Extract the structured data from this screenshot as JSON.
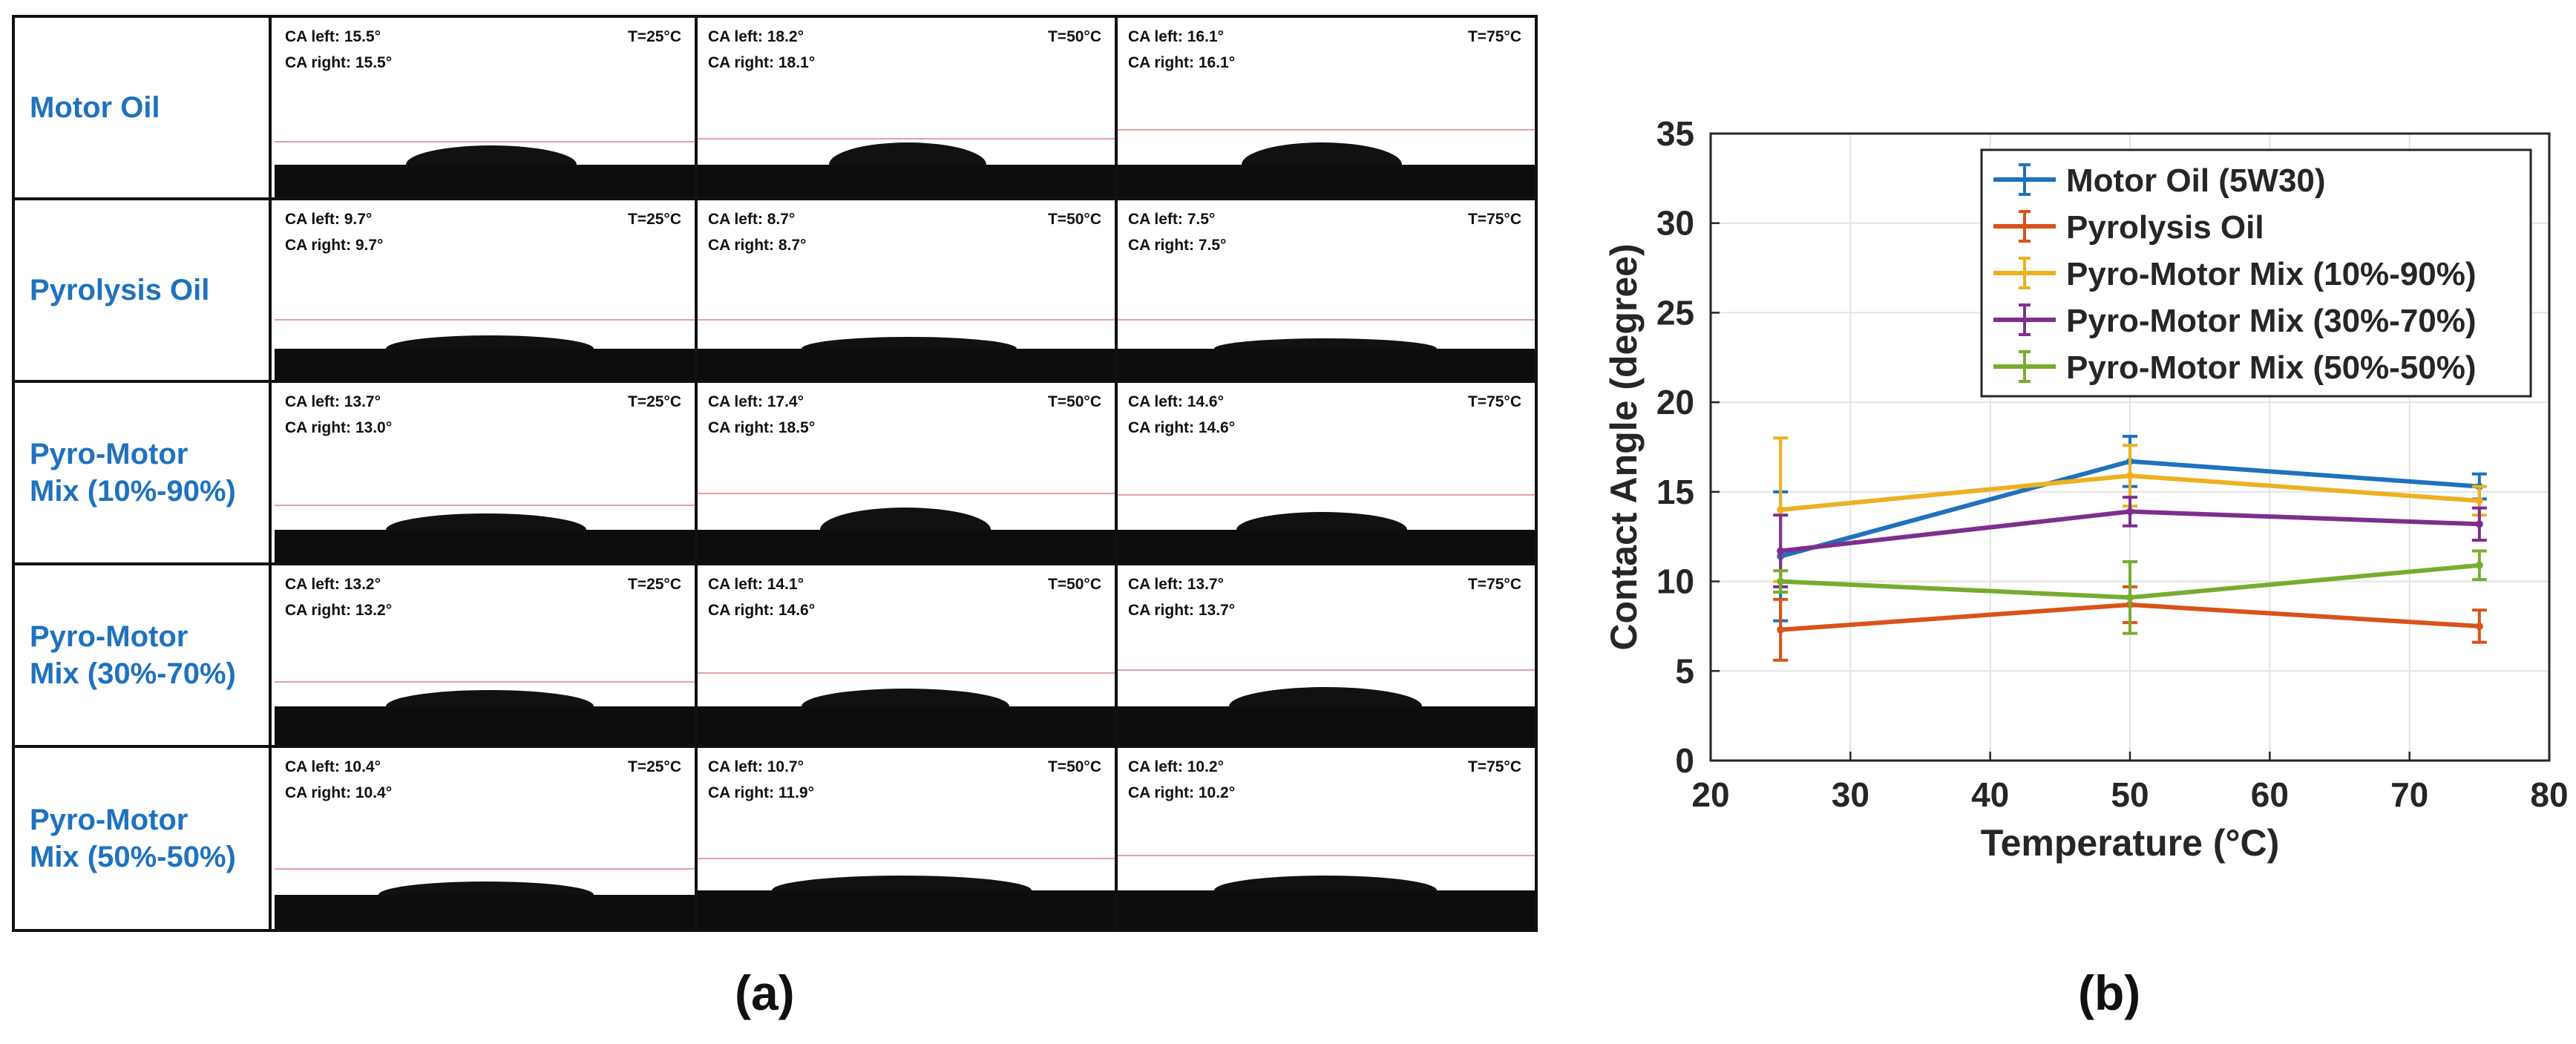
{
  "panel_a": {
    "caption": "(a)",
    "rows": [
      {
        "label_line1": "Motor Oil",
        "label_line2": "",
        "cells": [
          {
            "ca_left": "CA left: 15.5°",
            "ca_right": "CA right: 15.5°",
            "temp": "T=25°C"
          },
          {
            "ca_left": "CA left: 18.2°",
            "ca_right": "CA right: 18.1°",
            "temp": "T=50°C"
          },
          {
            "ca_left": "CA left: 16.1°",
            "ca_right": "CA right: 16.1°",
            "temp": "T=75°C"
          }
        ]
      },
      {
        "label_line1": "Pyrolysis Oil",
        "label_line2": "",
        "cells": [
          {
            "ca_left": "CA left: 9.7°",
            "ca_right": "CA right: 9.7°",
            "temp": "T=25°C"
          },
          {
            "ca_left": "CA left: 8.7°",
            "ca_right": "CA right: 8.7°",
            "temp": "T=50°C"
          },
          {
            "ca_left": "CA left: 7.5°",
            "ca_right": "CA right: 7.5°",
            "temp": "T=75°C"
          }
        ]
      },
      {
        "label_line1": "Pyro-Motor",
        "label_line2": "Mix (10%-90%)",
        "cells": [
          {
            "ca_left": "CA left: 13.7°",
            "ca_right": "CA right: 13.0°",
            "temp": "T=25°C"
          },
          {
            "ca_left": "CA left: 17.4°",
            "ca_right": "CA right: 18.5°",
            "temp": "T=50°C"
          },
          {
            "ca_left": "CA left: 14.6°",
            "ca_right": "CA right: 14.6°",
            "temp": "T=75°C"
          }
        ]
      },
      {
        "label_line1": "Pyro-Motor",
        "label_line2": "Mix (30%-70%)",
        "cells": [
          {
            "ca_left": "CA left: 13.2°",
            "ca_right": "CA right: 13.2°",
            "temp": "T=25°C"
          },
          {
            "ca_left": "CA left: 14.1°",
            "ca_right": "CA right: 14.6°",
            "temp": "T=50°C"
          },
          {
            "ca_left": "CA left: 13.7°",
            "ca_right": "CA right: 13.7°",
            "temp": "T=75°C"
          }
        ]
      },
      {
        "label_line1": "Pyro-Motor",
        "label_line2": "Mix (50%-50%)",
        "cells": [
          {
            "ca_left": "CA left: 10.4°",
            "ca_right": "CA right: 10.4°",
            "temp": "T=25°C"
          },
          {
            "ca_left": "CA left: 10.7°",
            "ca_right": "CA right: 11.9°",
            "temp": "T=50°C"
          },
          {
            "ca_left": "CA left: 10.2°",
            "ca_right": "CA right: 10.2°",
            "temp": "T=75°C"
          }
        ]
      }
    ]
  },
  "panel_b": {
    "caption": "(b)"
  },
  "chart_data": {
    "type": "line",
    "title": "",
    "xlabel": "Temperature (°C)",
    "ylabel": "Contact Angle (degree)",
    "xlim": [
      20,
      80
    ],
    "ylim": [
      0,
      35
    ],
    "xticks": [
      20,
      30,
      40,
      50,
      60,
      70,
      80
    ],
    "yticks": [
      0,
      5,
      10,
      15,
      20,
      25,
      30,
      35
    ],
    "grid": true,
    "legend_position": "top-right",
    "x": [
      25,
      50,
      75
    ],
    "series": [
      {
        "name": "Motor Oil (5W30)",
        "color": "#1f72bd",
        "values": [
          11.4,
          16.7,
          15.3
        ],
        "errors": [
          3.6,
          1.4,
          0.7
        ]
      },
      {
        "name": "Pyrolysis Oil",
        "color": "#d95319",
        "values": [
          7.3,
          8.7,
          7.5
        ],
        "errors": [
          1.7,
          1.0,
          0.9
        ]
      },
      {
        "name": "Pyro-Motor Mix (10%-90%)",
        "color": "#edb120",
        "values": [
          14.0,
          15.9,
          14.5
        ],
        "errors": [
          4.0,
          1.7,
          0.8
        ]
      },
      {
        "name": "Pyro-Motor Mix (30%-70%)",
        "color": "#7e2f8e",
        "values": [
          11.7,
          13.9,
          13.2
        ],
        "errors": [
          2.0,
          0.8,
          0.9
        ]
      },
      {
        "name": "Pyro-Motor Mix (50%-50%)",
        "color": "#77ac30",
        "values": [
          10.0,
          9.1,
          10.9
        ],
        "errors": [
          0.6,
          2.0,
          0.8
        ]
      }
    ]
  }
}
